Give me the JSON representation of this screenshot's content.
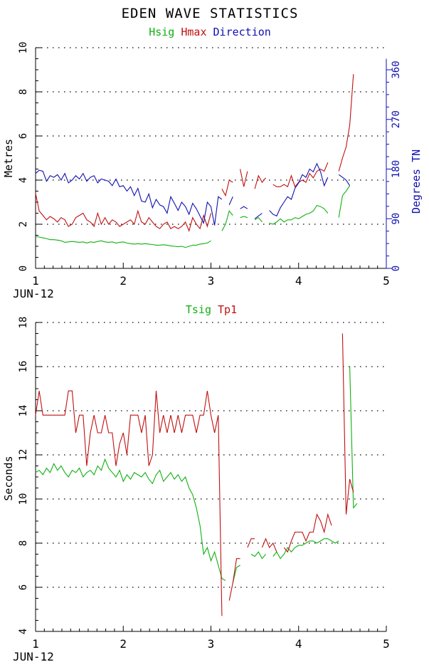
{
  "title": "EDEN WAVE STATISTICS",
  "colors": {
    "hsig": "#10b010",
    "hmax": "#c01010",
    "direction": "#1010b0",
    "tsig": "#10b010",
    "tp1": "#c01010",
    "axis": "#000000"
  },
  "chart_data": [
    {
      "type": "line",
      "legend": [
        "Hsig",
        "Hmax",
        "Direction"
      ],
      "xlabel": "JUN-12",
      "ylabel": "Metres",
      "y2label": "Degrees TN",
      "xlim": [
        1,
        5
      ],
      "ylim": [
        0,
        10
      ],
      "y2lim": [
        0,
        400
      ],
      "xticks": [
        "1",
        "2",
        "3",
        "4",
        "5"
      ],
      "yticks": [
        "0",
        "2",
        "4",
        "6",
        "8",
        "10"
      ],
      "y2ticks": [
        "0",
        "90",
        "180",
        "270",
        "360"
      ],
      "series": [
        {
          "name": "Hsig",
          "x_start": 1.0,
          "x_step": 0.041667,
          "values": [
            1.45,
            1.42,
            1.38,
            1.35,
            1.3,
            1.3,
            1.28,
            1.25,
            1.18,
            1.2,
            1.22,
            1.2,
            1.18,
            1.2,
            1.15,
            1.2,
            1.18,
            1.22,
            1.25,
            1.2,
            1.18,
            1.2,
            1.15,
            1.18,
            1.2,
            1.15,
            1.12,
            1.1,
            1.12,
            1.1,
            1.12,
            1.1,
            1.08,
            1.05,
            1.05,
            1.07,
            1.05,
            1.02,
            1.0,
            0.98,
            1.0,
            0.95,
            1.0,
            1.05,
            1.05,
            1.1,
            1.12,
            1.15,
            1.25,
            null,
            null,
            1.7,
            2.0,
            2.6,
            2.4,
            null,
            2.3,
            2.35,
            2.3,
            null,
            2.2,
            2.3,
            2.1,
            null,
            2.05,
            2.0,
            2.1,
            2.25,
            2.1,
            2.2,
            2.2,
            2.3,
            2.25,
            2.35,
            2.45,
            2.5,
            2.6,
            2.85,
            2.8,
            2.7,
            2.5,
            null,
            null,
            2.3,
            3.3,
            3.5,
            3.75
          ]
        },
        {
          "name": "Hmax",
          "x_start": 1.0,
          "x_step": 0.041667,
          "values": [
            3.4,
            2.6,
            2.4,
            2.2,
            2.35,
            2.25,
            2.1,
            2.3,
            2.2,
            1.9,
            2.0,
            2.3,
            2.4,
            2.5,
            2.2,
            2.1,
            1.9,
            2.5,
            2.0,
            2.3,
            2.0,
            2.2,
            2.1,
            1.9,
            2.0,
            2.1,
            2.2,
            2.0,
            2.6,
            2.1,
            2.0,
            2.3,
            2.1,
            1.9,
            1.8,
            2.0,
            2.1,
            1.8,
            1.9,
            1.8,
            1.9,
            2.1,
            1.7,
            2.3,
            2.0,
            1.8,
            2.4,
            1.9,
            2.5,
            null,
            null,
            3.6,
            3.3,
            4.0,
            3.9,
            null,
            4.5,
            3.7,
            4.4,
            null,
            3.6,
            4.2,
            3.9,
            4.1,
            null,
            3.8,
            3.7,
            3.7,
            3.8,
            3.7,
            4.2,
            3.7,
            3.9,
            4.0,
            3.9,
            4.3,
            4.1,
            4.4,
            4.5,
            4.4,
            4.8,
            null,
            null,
            4.4,
            5.0,
            5.5,
            6.5,
            8.8
          ]
        },
        {
          "name": "Direction",
          "x_start": 1.0,
          "x_step": 0.041667,
          "axis": "right",
          "values": [
            172,
            178,
            176,
            158,
            168,
            165,
            170,
            160,
            172,
            155,
            160,
            168,
            162,
            172,
            158,
            165,
            168,
            155,
            162,
            160,
            158,
            150,
            162,
            148,
            150,
            140,
            148,
            132,
            145,
            122,
            120,
            135,
            110,
            125,
            115,
            112,
            100,
            130,
            118,
            105,
            120,
            112,
            98,
            118,
            108,
            95,
            82,
            120,
            112,
            78,
            130,
            125,
            null,
            115,
            130,
            null,
            108,
            112,
            108,
            null,
            90,
            95,
            100,
            null,
            105,
            98,
            95,
            110,
            120,
            130,
            125,
            145,
            155,
            170,
            165,
            180,
            175,
            190,
            175,
            150,
            165,
            null,
            null,
            170,
            165,
            160,
            150
          ]
        }
      ]
    },
    {
      "type": "line",
      "legend": [
        "Tsig",
        "Tp1"
      ],
      "xlabel": "JUN-12",
      "ylabel": "Seconds",
      "xlim": [
        1,
        5
      ],
      "ylim": [
        4,
        18
      ],
      "xticks": [
        "1",
        "2",
        "3",
        "4",
        "5"
      ],
      "yticks": [
        "4",
        "6",
        "8",
        "10",
        "12",
        "14",
        "16",
        "18"
      ],
      "series": [
        {
          "name": "Tsig",
          "x_start": 1.0,
          "x_step": 0.041667,
          "values": [
            11.2,
            11.3,
            11.1,
            11.4,
            11.2,
            11.6,
            11.3,
            11.5,
            11.2,
            11.0,
            11.3,
            11.2,
            11.4,
            11.0,
            11.2,
            11.3,
            11.1,
            11.5,
            11.3,
            11.8,
            11.4,
            11.2,
            11.0,
            11.3,
            10.8,
            11.1,
            10.9,
            11.2,
            11.1,
            11.0,
            11.2,
            10.9,
            10.7,
            11.1,
            11.3,
            10.8,
            11.0,
            11.2,
            10.9,
            11.1,
            10.8,
            11.0,
            10.5,
            10.2,
            9.6,
            8.8,
            7.5,
            7.8,
            7.2,
            7.6,
            7.0,
            6.4,
            6.3,
            null,
            6.2,
            6.9,
            7.0,
            null,
            null,
            7.5,
            7.4,
            7.6,
            7.3,
            7.5,
            null,
            7.4,
            7.6,
            7.3,
            7.5,
            7.8,
            7.6,
            7.8,
            7.9,
            7.9,
            8.0,
            8.1,
            8.1,
            8.0,
            8.1,
            8.2,
            8.2,
            8.1,
            8.0,
            8.1,
            null,
            null,
            16.0,
            9.6,
            9.8
          ]
        },
        {
          "name": "Tp1",
          "x_start": 1.0,
          "x_step": 0.041667,
          "values": [
            13.8,
            14.9,
            13.8,
            13.8,
            13.8,
            13.8,
            13.8,
            13.8,
            13.8,
            14.9,
            14.9,
            13.0,
            13.8,
            13.8,
            11.5,
            13.0,
            13.8,
            13.0,
            13.0,
            13.8,
            13.0,
            13.0,
            11.5,
            12.5,
            13.0,
            12.0,
            13.8,
            13.8,
            13.8,
            13.0,
            13.8,
            11.5,
            12.0,
            14.9,
            13.0,
            13.8,
            13.0,
            13.8,
            13.0,
            13.8,
            13.0,
            13.8,
            13.8,
            13.8,
            13.0,
            13.8,
            13.8,
            14.9,
            13.8,
            13.0,
            13.8,
            4.7,
            null,
            5.4,
            6.2,
            7.3,
            7.3,
            null,
            7.8,
            8.2,
            8.2,
            null,
            7.8,
            8.2,
            7.8,
            8.0,
            7.6,
            null,
            7.8,
            7.6,
            8.1,
            8.5,
            8.5,
            8.5,
            8.1,
            8.5,
            8.5,
            9.3,
            9.0,
            8.5,
            9.3,
            8.8,
            null,
            null,
            17.5,
            9.3,
            10.9,
            10.3
          ]
        }
      ]
    }
  ]
}
